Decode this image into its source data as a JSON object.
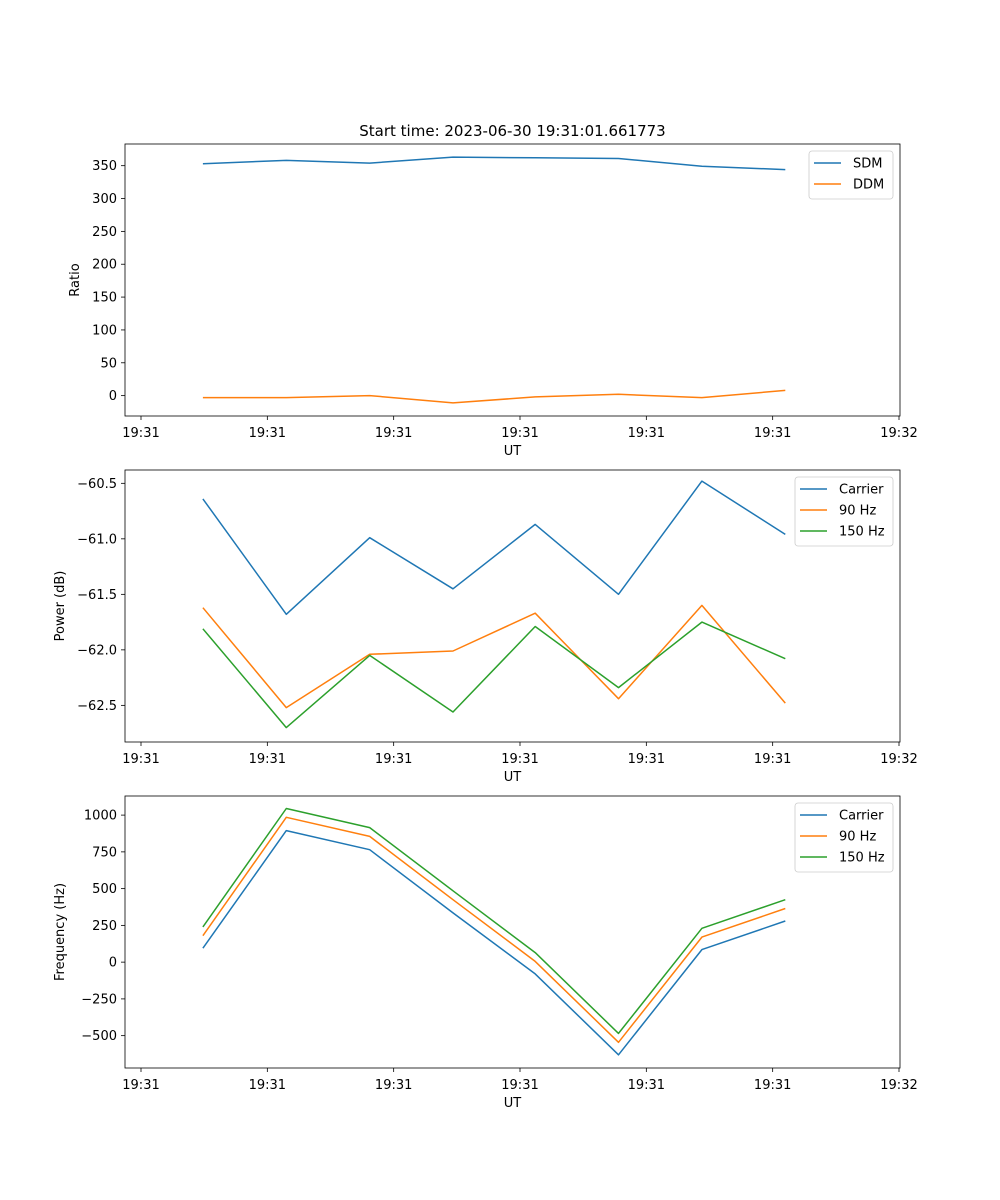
{
  "chart_data": [
    {
      "type": "line",
      "title": "Start time: 2023-06-30 19:31:01.661773",
      "xlabel": "UT",
      "ylabel": "Ratio",
      "xlim": [
        0,
        6
      ],
      "ylim": [
        -31,
        383
      ],
      "x_ticks": [
        0,
        1,
        2,
        3,
        4,
        5,
        6
      ],
      "x_tick_labels": [
        "19:31",
        "19:31",
        "19:31",
        "19:31",
        "19:31",
        "19:31",
        "19:32"
      ],
      "y_ticks": [
        0,
        50,
        100,
        150,
        200,
        250,
        300,
        350
      ],
      "y_tick_labels": [
        "0",
        "50",
        "100",
        "150",
        "200",
        "250",
        "300",
        "350"
      ],
      "x": [
        0.49,
        1.15,
        1.81,
        2.47,
        3.12,
        3.78,
        4.44,
        5.1
      ],
      "series": [
        {
          "name": "SDM",
          "color": "#1f77b4",
          "values": [
            353,
            358,
            354,
            363,
            362,
            361,
            349,
            344
          ]
        },
        {
          "name": "DDM",
          "color": "#ff7f0e",
          "values": [
            -3,
            -3,
            0,
            -11,
            -2,
            2,
            -3,
            8
          ]
        }
      ],
      "legend": "top-right",
      "grid": false
    },
    {
      "type": "line",
      "title": "",
      "xlabel": "UT",
      "ylabel": "Power (dB)",
      "xlim": [
        0,
        6
      ],
      "ylim": [
        -62.83,
        -60.38
      ],
      "x_ticks": [
        0,
        1,
        2,
        3,
        4,
        5,
        6
      ],
      "x_tick_labels": [
        "19:31",
        "19:31",
        "19:31",
        "19:31",
        "19:31",
        "19:31",
        "19:32"
      ],
      "y_ticks": [
        -62.5,
        -62.0,
        -61.5,
        -61.0,
        -60.5
      ],
      "y_tick_labels": [
        "−62.5",
        "−62.0",
        "−61.5",
        "−61.0",
        "−60.5"
      ],
      "x": [
        0.49,
        1.15,
        1.81,
        2.47,
        3.12,
        3.78,
        4.44,
        5.1
      ],
      "series": [
        {
          "name": "Carrier",
          "color": "#1f77b4",
          "values": [
            -60.64,
            -61.68,
            -60.99,
            -61.45,
            -60.87,
            -61.5,
            -60.48,
            -60.96
          ]
        },
        {
          "name": "90 Hz",
          "color": "#ff7f0e",
          "values": [
            -61.62,
            -62.52,
            -62.04,
            -62.01,
            -61.67,
            -62.44,
            -61.6,
            -62.48
          ]
        },
        {
          "name": "150 Hz",
          "color": "#2ca02c",
          "values": [
            -61.81,
            -62.7,
            -62.05,
            -62.56,
            -61.79,
            -62.34,
            -61.75,
            -62.08
          ]
        }
      ],
      "legend": "top-right",
      "grid": false
    },
    {
      "type": "line",
      "title": "",
      "xlabel": "UT",
      "ylabel": "Frequency (Hz)",
      "xlim": [
        0,
        6
      ],
      "ylim": [
        -720,
        1130
      ],
      "x_ticks": [
        0,
        1,
        2,
        3,
        4,
        5,
        6
      ],
      "x_tick_labels": [
        "19:31",
        "19:31",
        "19:31",
        "19:31",
        "19:31",
        "19:31",
        "19:32"
      ],
      "y_ticks": [
        -500,
        -250,
        0,
        250,
        500,
        750,
        1000
      ],
      "y_tick_labels": [
        "−500",
        "−250",
        "0",
        "250",
        "500",
        "750",
        "1000"
      ],
      "x": [
        0.49,
        1.15,
        1.81,
        2.47,
        3.12,
        3.78,
        4.44,
        5.1
      ],
      "series": [
        {
          "name": "Carrier",
          "color": "#1f77b4",
          "values": [
            95,
            895,
            765,
            335,
            -80,
            -630,
            85,
            280
          ]
        },
        {
          "name": "90 Hz",
          "color": "#ff7f0e",
          "values": [
            180,
            985,
            855,
            425,
            5,
            -545,
            170,
            365
          ]
        },
        {
          "name": "150 Hz",
          "color": "#2ca02c",
          "values": [
            240,
            1045,
            915,
            485,
            65,
            -485,
            230,
            425
          ]
        }
      ],
      "legend": "top-right",
      "grid": false
    }
  ]
}
